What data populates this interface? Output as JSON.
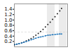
{
  "chart_data": {
    "type": "line",
    "x": [
      0,
      4,
      8,
      12,
      16,
      20,
      24,
      28,
      32,
      36,
      40,
      44,
      48,
      52,
      56,
      60,
      64,
      68,
      72,
      76,
      79
    ],
    "series": [
      {
        "color": "#222222",
        "line_style": "none",
        "marker": "dot",
        "values": [
          0.08,
          0.1,
          0.12,
          0.15,
          0.18,
          0.22,
          0.26,
          0.31,
          0.37,
          0.43,
          0.5,
          0.57,
          0.65,
          0.74,
          0.83,
          0.92,
          1.02,
          1.12,
          1.23,
          1.34,
          1.43
        ]
      },
      {
        "color": "#2277bb",
        "line_style": "dashed",
        "marker": "dot",
        "values": [
          0.08,
          0.1,
          0.12,
          0.14,
          0.17,
          0.2,
          0.23,
          0.26,
          0.29,
          0.32,
          0.35,
          0.37,
          0.39,
          0.41,
          0.43,
          0.44,
          0.45,
          0.46,
          0.47,
          0.48,
          0.48
        ]
      }
    ],
    "bands": [
      {
        "x0": 55,
        "x1": 68,
        "color": "#ebebeb"
      },
      {
        "x0": 75,
        "x1": 88,
        "color": "#ebebeb"
      }
    ],
    "reference_line": {
      "y": 0.55,
      "color": "#cccccc",
      "line_style": "dashed"
    },
    "xlim": [
      0,
      89
    ],
    "ylim": [
      0.0,
      1.6
    ],
    "yticks": [
      0.2,
      0.4,
      0.6,
      0.8,
      {
        "value": 1.0,
        "label": "1.0"
      },
      1.2,
      1.4
    ],
    "tick_labels": "y"
  }
}
